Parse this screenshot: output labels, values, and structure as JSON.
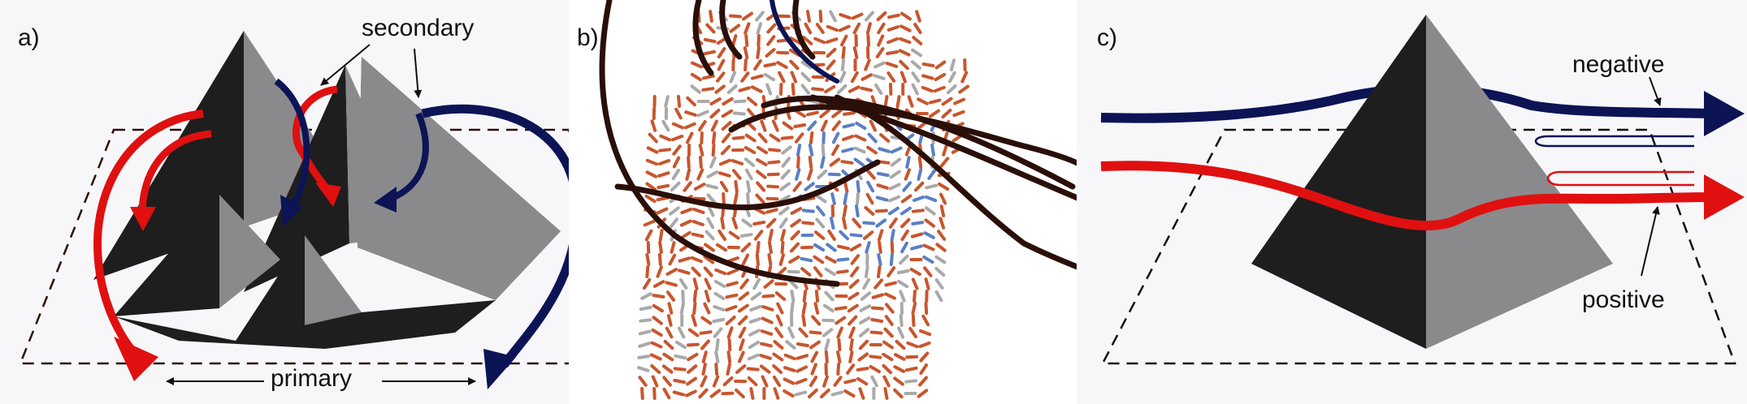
{
  "panels": [
    {
      "id": "a",
      "label": "a)",
      "annotations": {
        "secondary": "secondary",
        "primary": "primary"
      }
    },
    {
      "id": "b",
      "label": "b)"
    },
    {
      "id": "c",
      "label": "c)",
      "annotations": {
        "negative": "negative",
        "positive": "positive"
      }
    }
  ],
  "colors": {
    "pyramid_dark": "#1e1e1e",
    "pyramid_light": "#8a8a8c",
    "red_arrow": "#e01010",
    "navy_arrow": "#0c1456",
    "glyph_orange": "#c8562e",
    "glyph_blue": "#5b7fc4",
    "glyph_grey": "#a9a9a9",
    "streamline": "#2a0f08"
  },
  "icons": {
    "arrow": "arrow-head",
    "pyramid": "pyramid-shape"
  }
}
